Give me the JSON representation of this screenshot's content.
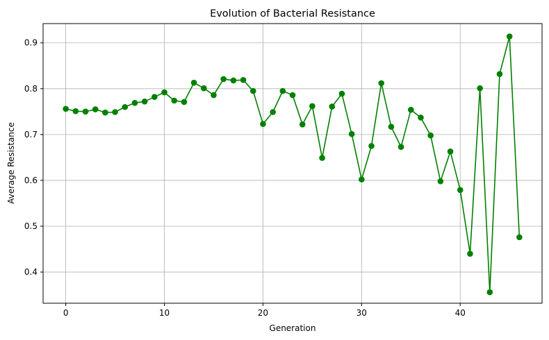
{
  "chart_data": {
    "type": "line",
    "title": "Evolution of Bacterial Resistance",
    "xlabel": "Generation",
    "ylabel": "Average Resistance",
    "xlim": [
      -2.3,
      48.3
    ],
    "ylim": [
      0.332,
      0.942
    ],
    "xticks": [
      0,
      10,
      20,
      30,
      40
    ],
    "yticks": [
      0.4,
      0.5,
      0.6,
      0.7,
      0.8,
      0.9
    ],
    "ytick_labels": [
      "0.4",
      "0.5",
      "0.6",
      "0.7",
      "0.8",
      "0.9"
    ],
    "grid": true,
    "marker": "circle",
    "color": "#008000",
    "series": [
      {
        "x": [
          0,
          1,
          2,
          3,
          4,
          5,
          6,
          7,
          8,
          9,
          10,
          11,
          12,
          13,
          14,
          15,
          16,
          17,
          18,
          19,
          20,
          21,
          22,
          23,
          24,
          25,
          26,
          27,
          28,
          29,
          30,
          31,
          32,
          33,
          34,
          35,
          36,
          37,
          38,
          39,
          40,
          41,
          42,
          43,
          44,
          45,
          46
        ],
        "values": [
          0.756,
          0.751,
          0.75,
          0.755,
          0.748,
          0.749,
          0.76,
          0.769,
          0.772,
          0.782,
          0.792,
          0.774,
          0.771,
          0.813,
          0.801,
          0.786,
          0.821,
          0.818,
          0.819,
          0.795,
          0.723,
          0.749,
          0.795,
          0.786,
          0.722,
          0.762,
          0.649,
          0.761,
          0.789,
          0.701,
          0.602,
          0.675,
          0.812,
          0.717,
          0.673,
          0.754,
          0.737,
          0.698,
          0.598,
          0.663,
          0.579,
          0.44,
          0.801,
          0.356,
          0.832,
          0.914,
          0.476
        ]
      }
    ]
  }
}
